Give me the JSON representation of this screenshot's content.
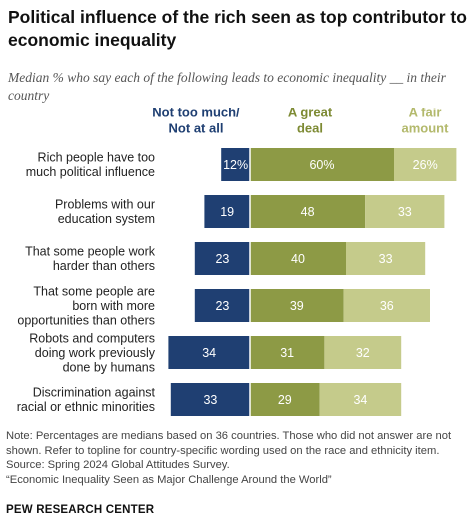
{
  "title": "Political influence of the rich seen as top contributor to economic inequality",
  "subtitle": "Median % who say each of the following leads to economic inequality __ in their country",
  "chart_data": {
    "type": "bar",
    "orientation": "horizontal",
    "stacked": "diverging",
    "categories": [
      [
        "Rich people have too",
        "much political influence"
      ],
      [
        "Problems with our",
        "education system"
      ],
      [
        "That some people work",
        "harder than others"
      ],
      [
        "That some people are",
        "born with more",
        "opportunities than others"
      ],
      [
        "Robots and computers",
        "doing work previously",
        "done by humans"
      ],
      [
        "Discrimination against",
        "racial or ethnic minorities"
      ]
    ],
    "series": [
      {
        "name": "Not too much/ Not at all",
        "header": [
          "Not too much/",
          "Not at all"
        ],
        "values": [
          12,
          19,
          23,
          23,
          34,
          33
        ],
        "labels": [
          "12%",
          "19",
          "23",
          "23",
          "34",
          "33"
        ],
        "color": "#1f3f72",
        "header_color": "#1f3f72",
        "label_color": "#ffffff"
      },
      {
        "name": "A great deal",
        "header": [
          "A great",
          "deal"
        ],
        "values": [
          60,
          48,
          40,
          39,
          31,
          29
        ],
        "labels": [
          "60%",
          "48",
          "40",
          "39",
          "31",
          "29"
        ],
        "color": "#8d9a45",
        "header_color": "#7d8a33",
        "label_color": "#ffffff"
      },
      {
        "name": "A fair amount",
        "header": [
          "A fair",
          "amount"
        ],
        "values": [
          26,
          33,
          33,
          36,
          32,
          34
        ],
        "labels": [
          "26%",
          "33",
          "33",
          "36",
          "32",
          "34"
        ],
        "color": "#c5cb8b",
        "header_color": "#b3b96c",
        "label_color": "#ffffff"
      }
    ]
  },
  "notes": [
    "Note: Percentages are medians based on 36 countries. Those who did not answer are not",
    "shown. Refer to topline for country-specific wording used on the race and ethnicity item.",
    "Source: Spring 2024 Global Attitudes Survey.",
    "“Economic Inequality Seen as Major Challenge Around the World”"
  ],
  "brand": "PEW RESEARCH CENTER"
}
